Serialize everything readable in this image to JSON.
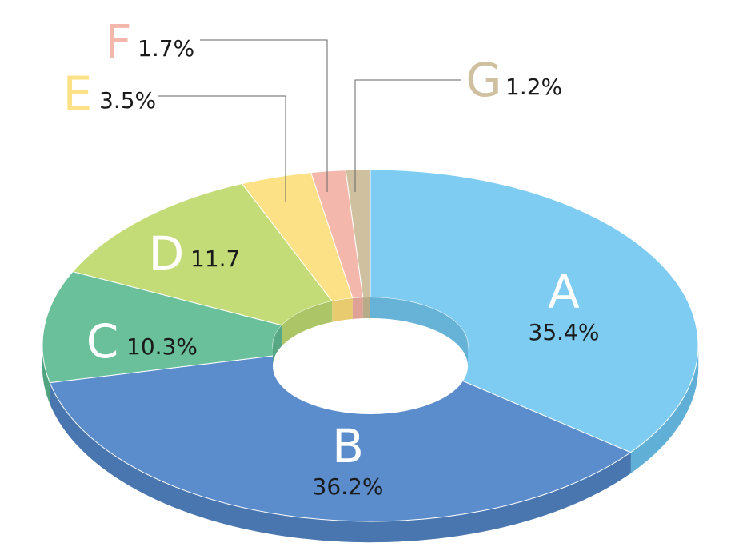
{
  "chart_data": {
    "type": "pie",
    "style": "3d-donut",
    "slices": [
      {
        "letter": "A",
        "value": "35.4%",
        "number": 35.4,
        "color": "#7ECCF1",
        "side": "#5FAFD6",
        "letter_color": "#FFFFFF",
        "value_color": "#1a1a1a"
      },
      {
        "letter": "B",
        "value": "36.2%",
        "number": 36.2,
        "color": "#5B8CCB",
        "side": "#4A76B0",
        "letter_color": "#FFFFFF",
        "value_color": "#1a1a1a"
      },
      {
        "letter": "C",
        "value": "10.3%",
        "number": 10.3,
        "color": "#69C09A",
        "side": "#4FA37E",
        "letter_color": "#FFFFFF",
        "value_color": "#1a1a1a"
      },
      {
        "letter": "D",
        "value": "11.7",
        "number": 11.7,
        "color": "#C4DC78",
        "side": "#A8C25F",
        "letter_color": "#FFFFFF",
        "value_color": "#1a1a1a"
      },
      {
        "letter": "E",
        "value": "3.5%",
        "number": 3.5,
        "color": "#FDE186",
        "side": "#E6C866",
        "letter_color": "#FDE186",
        "value_color": "#1a1a1a"
      },
      {
        "letter": "F",
        "value": "1.7%",
        "number": 1.7,
        "color": "#F4B7AC",
        "side": "#DD9C90",
        "letter_color": "#F4B7AC",
        "value_color": "#1a1a1a"
      },
      {
        "letter": "G",
        "value": "1.2%",
        "number": 1.2,
        "color": "#CFC0A0",
        "side": "#B4A683",
        "letter_color": "#CFC0A0",
        "value_color": "#1a1a1a"
      }
    ],
    "title": "",
    "legend": "none"
  }
}
